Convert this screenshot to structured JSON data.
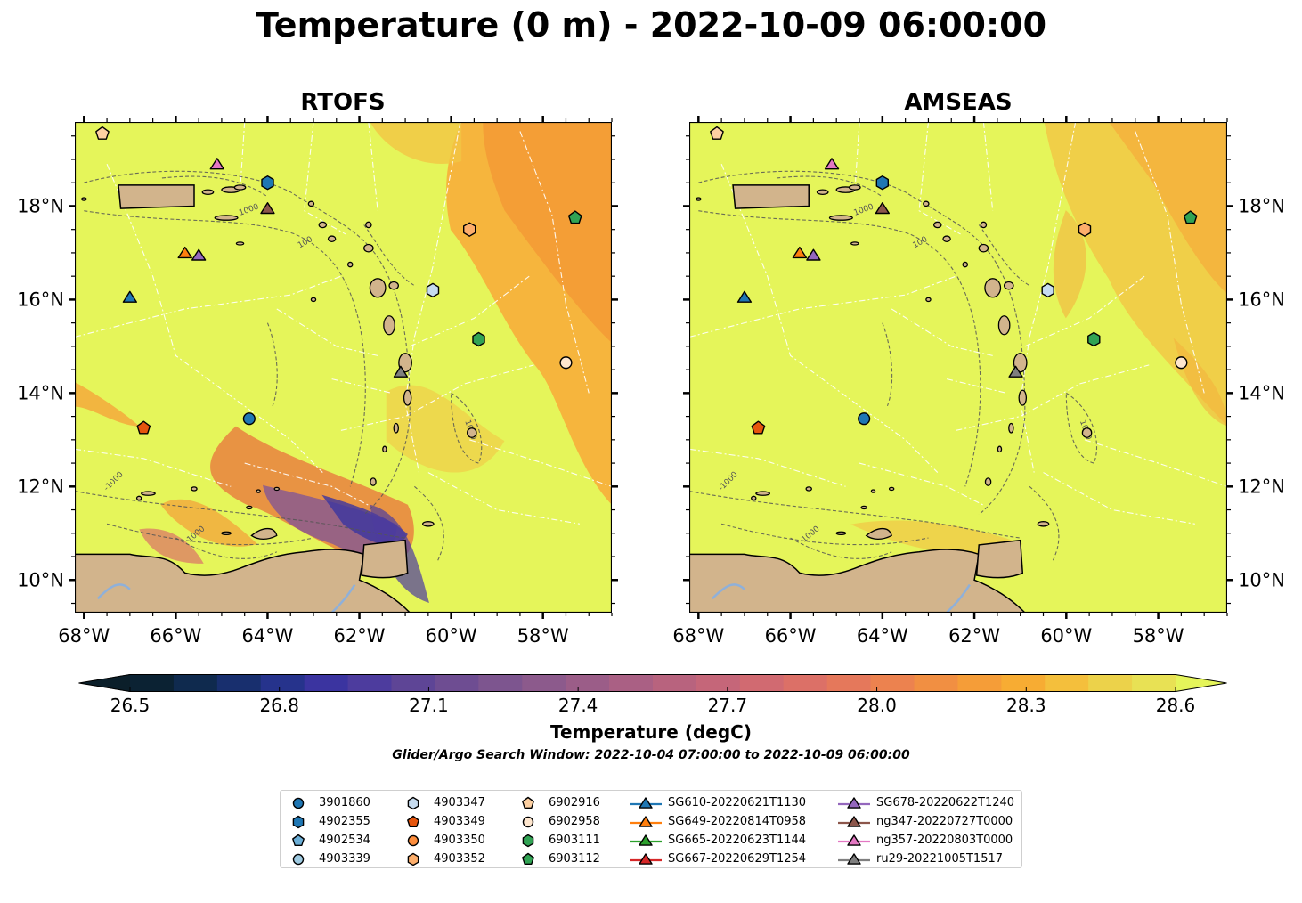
{
  "title": "Temperature (0 m) - 2022-10-09 06:00:00",
  "panels": [
    {
      "title": "RTOFS",
      "model": "rtofs"
    },
    {
      "title": "AMSEAS",
      "model": "amseas"
    }
  ],
  "map_extent": {
    "lon": [
      -68.2,
      -56.5
    ],
    "lat": [
      9.3,
      19.8
    ]
  },
  "lon_ticks": [
    "68°W",
    "66°W",
    "64°W",
    "62°W",
    "60°W",
    "58°W"
  ],
  "lon_tick_values": [
    -68,
    -66,
    -64,
    -62,
    -60,
    -58
  ],
  "lat_ticks": [
    "10°N",
    "12°N",
    "14°N",
    "16°N",
    "18°N"
  ],
  "lat_tick_values": [
    10,
    12,
    14,
    16,
    18
  ],
  "contour_labels": [
    "1000",
    "100",
    "1000",
    "-1000",
    "1000"
  ],
  "colorbar": {
    "ticks": [
      "26.5",
      "26.8",
      "27.1",
      "27.4",
      "27.7",
      "28.0",
      "28.3",
      "28.6"
    ],
    "tick_values": [
      26.5,
      26.8,
      27.1,
      27.4,
      27.7,
      28.0,
      28.3,
      28.6
    ],
    "label": "Temperature (degC)",
    "colors": [
      "#0b2233",
      "#0f2a4e",
      "#182f6e",
      "#26338c",
      "#3b34a0",
      "#4d3c9e",
      "#5e4596",
      "#6e4d92",
      "#7d558f",
      "#8c5a8c",
      "#9b5d88",
      "#aa6084",
      "#b8637e",
      "#c56679",
      "#d16a71",
      "#dc7067",
      "#e5785b",
      "#ec824f",
      "#f18f42",
      "#f59d38",
      "#f7ac33",
      "#f4bf3c",
      "#ecd24a",
      "#e8e154"
    ],
    "extend_low": "#0b1f2a",
    "extend_high": "#e5f55a"
  },
  "search_window": "Glider/Argo Search Window: 2022-10-04 07:00:00 to 2022-10-09 06:00:00",
  "colors": {
    "land": "#d2b48c",
    "ocean_warm": "#e5f55a",
    "ocean_mid": "#f7a93a",
    "ocean_hot": "#f59a35",
    "contour": "#555555",
    "boundary": "#ffffff"
  },
  "legend": {
    "columns": [
      [
        {
          "label": "3901860",
          "marker": "circle",
          "color": "#1f77b4"
        },
        {
          "label": "4902355",
          "marker": "hexagon",
          "color": "#1f77b4"
        },
        {
          "label": "4902534",
          "marker": "pentagon",
          "color": "#6baed6"
        },
        {
          "label": "4903339",
          "marker": "circle",
          "color": "#9ecae1"
        }
      ],
      [
        {
          "label": "4903347",
          "marker": "hexagon",
          "color": "#c6dbef"
        },
        {
          "label": "4903349",
          "marker": "pentagon",
          "color": "#e6550d"
        },
        {
          "label": "4903350",
          "marker": "circle",
          "color": "#fd8d3c"
        },
        {
          "label": "4903352",
          "marker": "hexagon",
          "color": "#fdae6b"
        }
      ],
      [
        {
          "label": "6902916",
          "marker": "pentagon",
          "color": "#fdd0a2"
        },
        {
          "label": "6902958",
          "marker": "circle",
          "color": "#fee6ce"
        },
        {
          "label": "6903111",
          "marker": "hexagon",
          "color": "#31a354"
        },
        {
          "label": "6903112",
          "marker": "pentagon",
          "color": "#31a354"
        }
      ],
      [
        {
          "label": "SG610-20220621T1130",
          "marker": "triangle",
          "color": "#1f77b4",
          "line": true
        },
        {
          "label": "SG649-20220814T0958",
          "marker": "triangle",
          "color": "#ff7f0e",
          "line": true
        },
        {
          "label": "SG665-20220623T1144",
          "marker": "triangle",
          "color": "#2ca02c",
          "line": true
        },
        {
          "label": "SG667-20220629T1254",
          "marker": "triangle",
          "color": "#d62728",
          "line": true
        }
      ],
      [
        {
          "label": "SG678-20220622T1240",
          "marker": "triangle",
          "color": "#9467bd",
          "line": true
        },
        {
          "label": "ng347-20220727T0000",
          "marker": "triangle",
          "color": "#8c564b",
          "line": true
        },
        {
          "label": "ng357-20220803T0000",
          "marker": "triangle",
          "color": "#e377c2",
          "line": true
        },
        {
          "label": "ru29-20221005T1517",
          "marker": "triangle",
          "color": "#7f7f7f",
          "line": true
        }
      ]
    ]
  },
  "platforms": [
    {
      "id": "3901860",
      "lon": -64.4,
      "lat": 13.45,
      "marker": "circle",
      "color": "#1f77b4"
    },
    {
      "id": "4902355",
      "lon": -64.0,
      "lat": 18.5,
      "marker": "hexagon",
      "color": "#1f77b4"
    },
    {
      "id": "4903347",
      "lon": -60.4,
      "lat": 16.2,
      "marker": "hexagon",
      "color": "#c6dbef"
    },
    {
      "id": "4903349",
      "lon": -66.7,
      "lat": 13.25,
      "marker": "pentagon",
      "color": "#e6550d"
    },
    {
      "id": "4903352",
      "lon": -59.6,
      "lat": 17.5,
      "marker": "hexagon",
      "color": "#fdae6b"
    },
    {
      "id": "6902916",
      "lon": -67.6,
      "lat": 19.55,
      "marker": "pentagon",
      "color": "#fdd0a2"
    },
    {
      "id": "6902958",
      "lon": -57.5,
      "lat": 14.65,
      "marker": "circle",
      "color": "#fee6ce"
    },
    {
      "id": "6903111",
      "lon": -59.4,
      "lat": 15.15,
      "marker": "hexagon",
      "color": "#31a354"
    },
    {
      "id": "6903112",
      "lon": -57.3,
      "lat": 17.75,
      "marker": "pentagon",
      "color": "#31a354"
    },
    {
      "id": "SG610-20220621T1130",
      "lon": -67.0,
      "lat": 16.05,
      "marker": "triangle",
      "color": "#1f77b4"
    },
    {
      "id": "SG649-20220814T0958",
      "lon": -65.8,
      "lat": 17.0,
      "marker": "triangle",
      "color": "#ff7f0e"
    },
    {
      "id": "SG678-20220622T1240",
      "lon": -65.5,
      "lat": 16.95,
      "marker": "triangle",
      "color": "#9467bd"
    },
    {
      "id": "ng347-20220727T0000",
      "lon": -64.0,
      "lat": 17.95,
      "marker": "triangle",
      "color": "#8c564b"
    },
    {
      "id": "ng357-20220803T0000",
      "lon": -65.1,
      "lat": 18.9,
      "marker": "triangle",
      "color": "#e377c2"
    },
    {
      "id": "ru29-20221005T1517",
      "lon": -61.1,
      "lat": 14.45,
      "marker": "triangle",
      "color": "#7f7f7f"
    }
  ]
}
